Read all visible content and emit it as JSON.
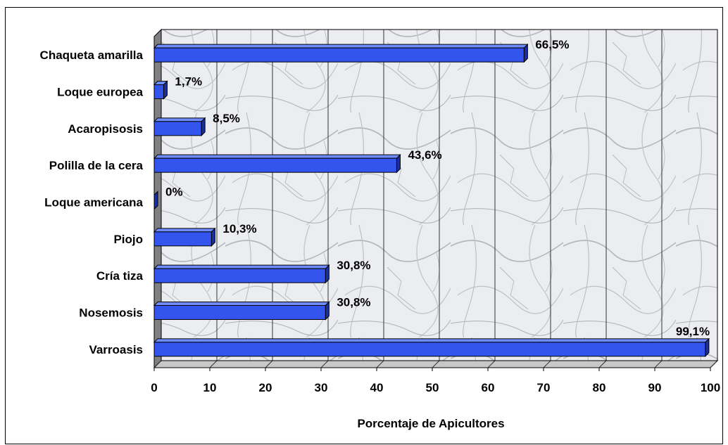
{
  "chart_data": {
    "type": "bar",
    "orientation": "horizontal",
    "categories": [
      "Chaqueta amarilla",
      "Loque europea",
      "Acaropisosis",
      "Polilla de la cera",
      "Loque americana",
      "Piojo",
      "Cría tiza",
      "Nosemosis",
      "Varroasis"
    ],
    "values": [
      66.5,
      1.7,
      8.5,
      43.6,
      0,
      10.3,
      30.8,
      30.8,
      99.1
    ],
    "data_labels": [
      "66,5%",
      "1,7%",
      "8,5%",
      "43,6%",
      "0%",
      "10,3%",
      "30,8%",
      "30,8%",
      "99,1%"
    ],
    "title": "",
    "xlabel": "Porcentaje de Apicultores",
    "ylabel": "",
    "xlim": [
      0,
      100
    ],
    "xticks": [
      0,
      10,
      20,
      30,
      40,
      50,
      60,
      70,
      80,
      90,
      100
    ],
    "grid": "vertical",
    "legend": "none",
    "three_d": true,
    "colors": {
      "bar": "#3355ee",
      "bar_top": "#6f8cff",
      "bar_side": "#1a2fa0",
      "grid": "#333333",
      "wall_side": "#808080",
      "floor": "#c8c8c8"
    }
  }
}
